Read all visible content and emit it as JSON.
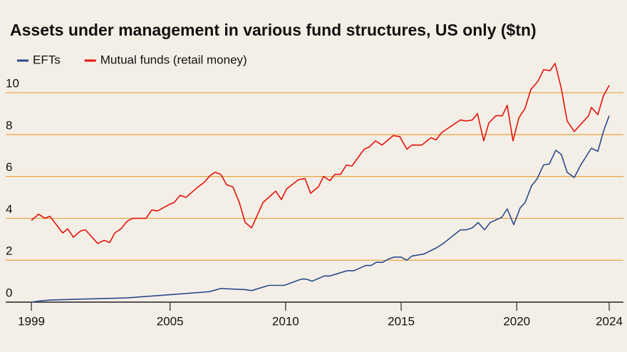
{
  "chart_data": {
    "type": "line",
    "title": "Assets under management in various fund structures, US only ($tn)",
    "xlim": [
      1999,
      2024
    ],
    "xticks": [
      1999,
      2005,
      2010,
      2015,
      2020,
      2024
    ],
    "ylim": [
      0,
      11.5
    ],
    "yticks": [
      0,
      2,
      4,
      6,
      8,
      10
    ],
    "grid": true,
    "series": [
      {
        "name": "EFTs",
        "color": "#2b4b8c",
        "x": [
          1999.0,
          1999.31,
          1999.8,
          2001.34,
          2003.13,
          2004.95,
          2006.71,
          2007.2,
          2008.25,
          2008.53,
          2009.27,
          2009.94,
          2010.68,
          2010.9,
          2011.15,
          2011.67,
          2011.92,
          2012.66,
          2012.96,
          2013.46,
          2013.7,
          2013.92,
          2014.2,
          2014.44,
          2014.69,
          2015.0,
          2015.25,
          2015.46,
          2015.99,
          2016.54,
          2016.82,
          2017.56,
          2017.8,
          2018.08,
          2018.33,
          2018.61,
          2018.85,
          2019.35,
          2019.59,
          2019.87,
          2020.15,
          2020.36,
          2020.64,
          2020.89,
          2021.16,
          2021.41,
          2021.69,
          2021.93,
          2022.18,
          2022.49,
          2022.77,
          2023.23,
          2023.51,
          2023.75,
          2024.0
        ],
        "values": [
          0,
          0.05,
          0.1,
          0.15,
          0.2,
          0.35,
          0.5,
          0.65,
          0.6,
          0.55,
          0.8,
          0.8,
          1.1,
          1.1,
          1.0,
          1.25,
          1.25,
          1.5,
          1.5,
          1.75,
          1.75,
          1.9,
          1.9,
          2.05,
          2.15,
          2.15,
          2.0,
          2.2,
          2.3,
          2.6,
          2.8,
          3.45,
          3.45,
          3.55,
          3.8,
          3.45,
          3.8,
          4.05,
          4.45,
          3.7,
          4.5,
          4.75,
          5.55,
          5.9,
          6.55,
          6.6,
          7.25,
          7.05,
          6.2,
          5.95,
          6.55,
          7.35,
          7.2,
          8.15,
          8.9
        ]
      },
      {
        "name": "Mutual funds (retail money)",
        "color": "#e3120b",
        "x": [
          1999.0,
          1999.31,
          1999.59,
          1999.8,
          2000.36,
          2000.57,
          2000.82,
          2001.13,
          2001.34,
          2001.87,
          2002.14,
          2002.39,
          2002.61,
          2002.88,
          2003.13,
          2003.38,
          2003.96,
          2004.21,
          2004.46,
          2004.95,
          2005.17,
          2005.44,
          2005.69,
          2006.21,
          2006.46,
          2006.74,
          2006.95,
          2007.2,
          2007.45,
          2007.72,
          2008.0,
          2008.25,
          2008.53,
          2009.02,
          2009.57,
          2009.82,
          2010.04,
          2010.56,
          2010.84,
          2011.08,
          2011.42,
          2011.64,
          2011.92,
          2012.13,
          2012.38,
          2012.63,
          2012.87,
          2013.4,
          2013.61,
          2013.89,
          2014.17,
          2014.66,
          2014.94,
          2015.25,
          2015.46,
          2015.89,
          2016.29,
          2016.51,
          2016.76,
          2017.56,
          2017.83,
          2018.08,
          2018.3,
          2018.57,
          2018.79,
          2019.1,
          2019.38,
          2019.59,
          2019.84,
          2020.09,
          2020.36,
          2020.61,
          2020.92,
          2021.16,
          2021.44,
          2021.66,
          2021.93,
          2022.18,
          2022.49,
          2023.11,
          2023.23,
          2023.51,
          2023.75,
          2024.0
        ],
        "values": [
          3.9,
          4.2,
          4.0,
          4.1,
          3.3,
          3.5,
          3.1,
          3.4,
          3.45,
          2.8,
          2.95,
          2.85,
          3.3,
          3.5,
          3.85,
          4.0,
          4.0,
          4.4,
          4.35,
          4.65,
          4.75,
          5.1,
          5.0,
          5.5,
          5.7,
          6.05,
          6.2,
          6.1,
          5.6,
          5.5,
          4.75,
          3.8,
          3.55,
          4.75,
          5.3,
          4.9,
          5.4,
          5.85,
          5.9,
          5.2,
          5.5,
          6.0,
          5.8,
          6.1,
          6.1,
          6.55,
          6.5,
          7.3,
          7.4,
          7.7,
          7.5,
          7.95,
          7.9,
          7.3,
          7.5,
          7.5,
          7.85,
          7.75,
          8.1,
          8.7,
          8.65,
          8.7,
          9.0,
          7.7,
          8.55,
          8.9,
          8.9,
          9.4,
          7.7,
          8.8,
          9.25,
          10.15,
          10.55,
          11.1,
          11.05,
          11.4,
          10.2,
          8.65,
          8.15,
          8.9,
          9.3,
          8.95,
          9.85,
          10.35
        ]
      }
    ]
  }
}
